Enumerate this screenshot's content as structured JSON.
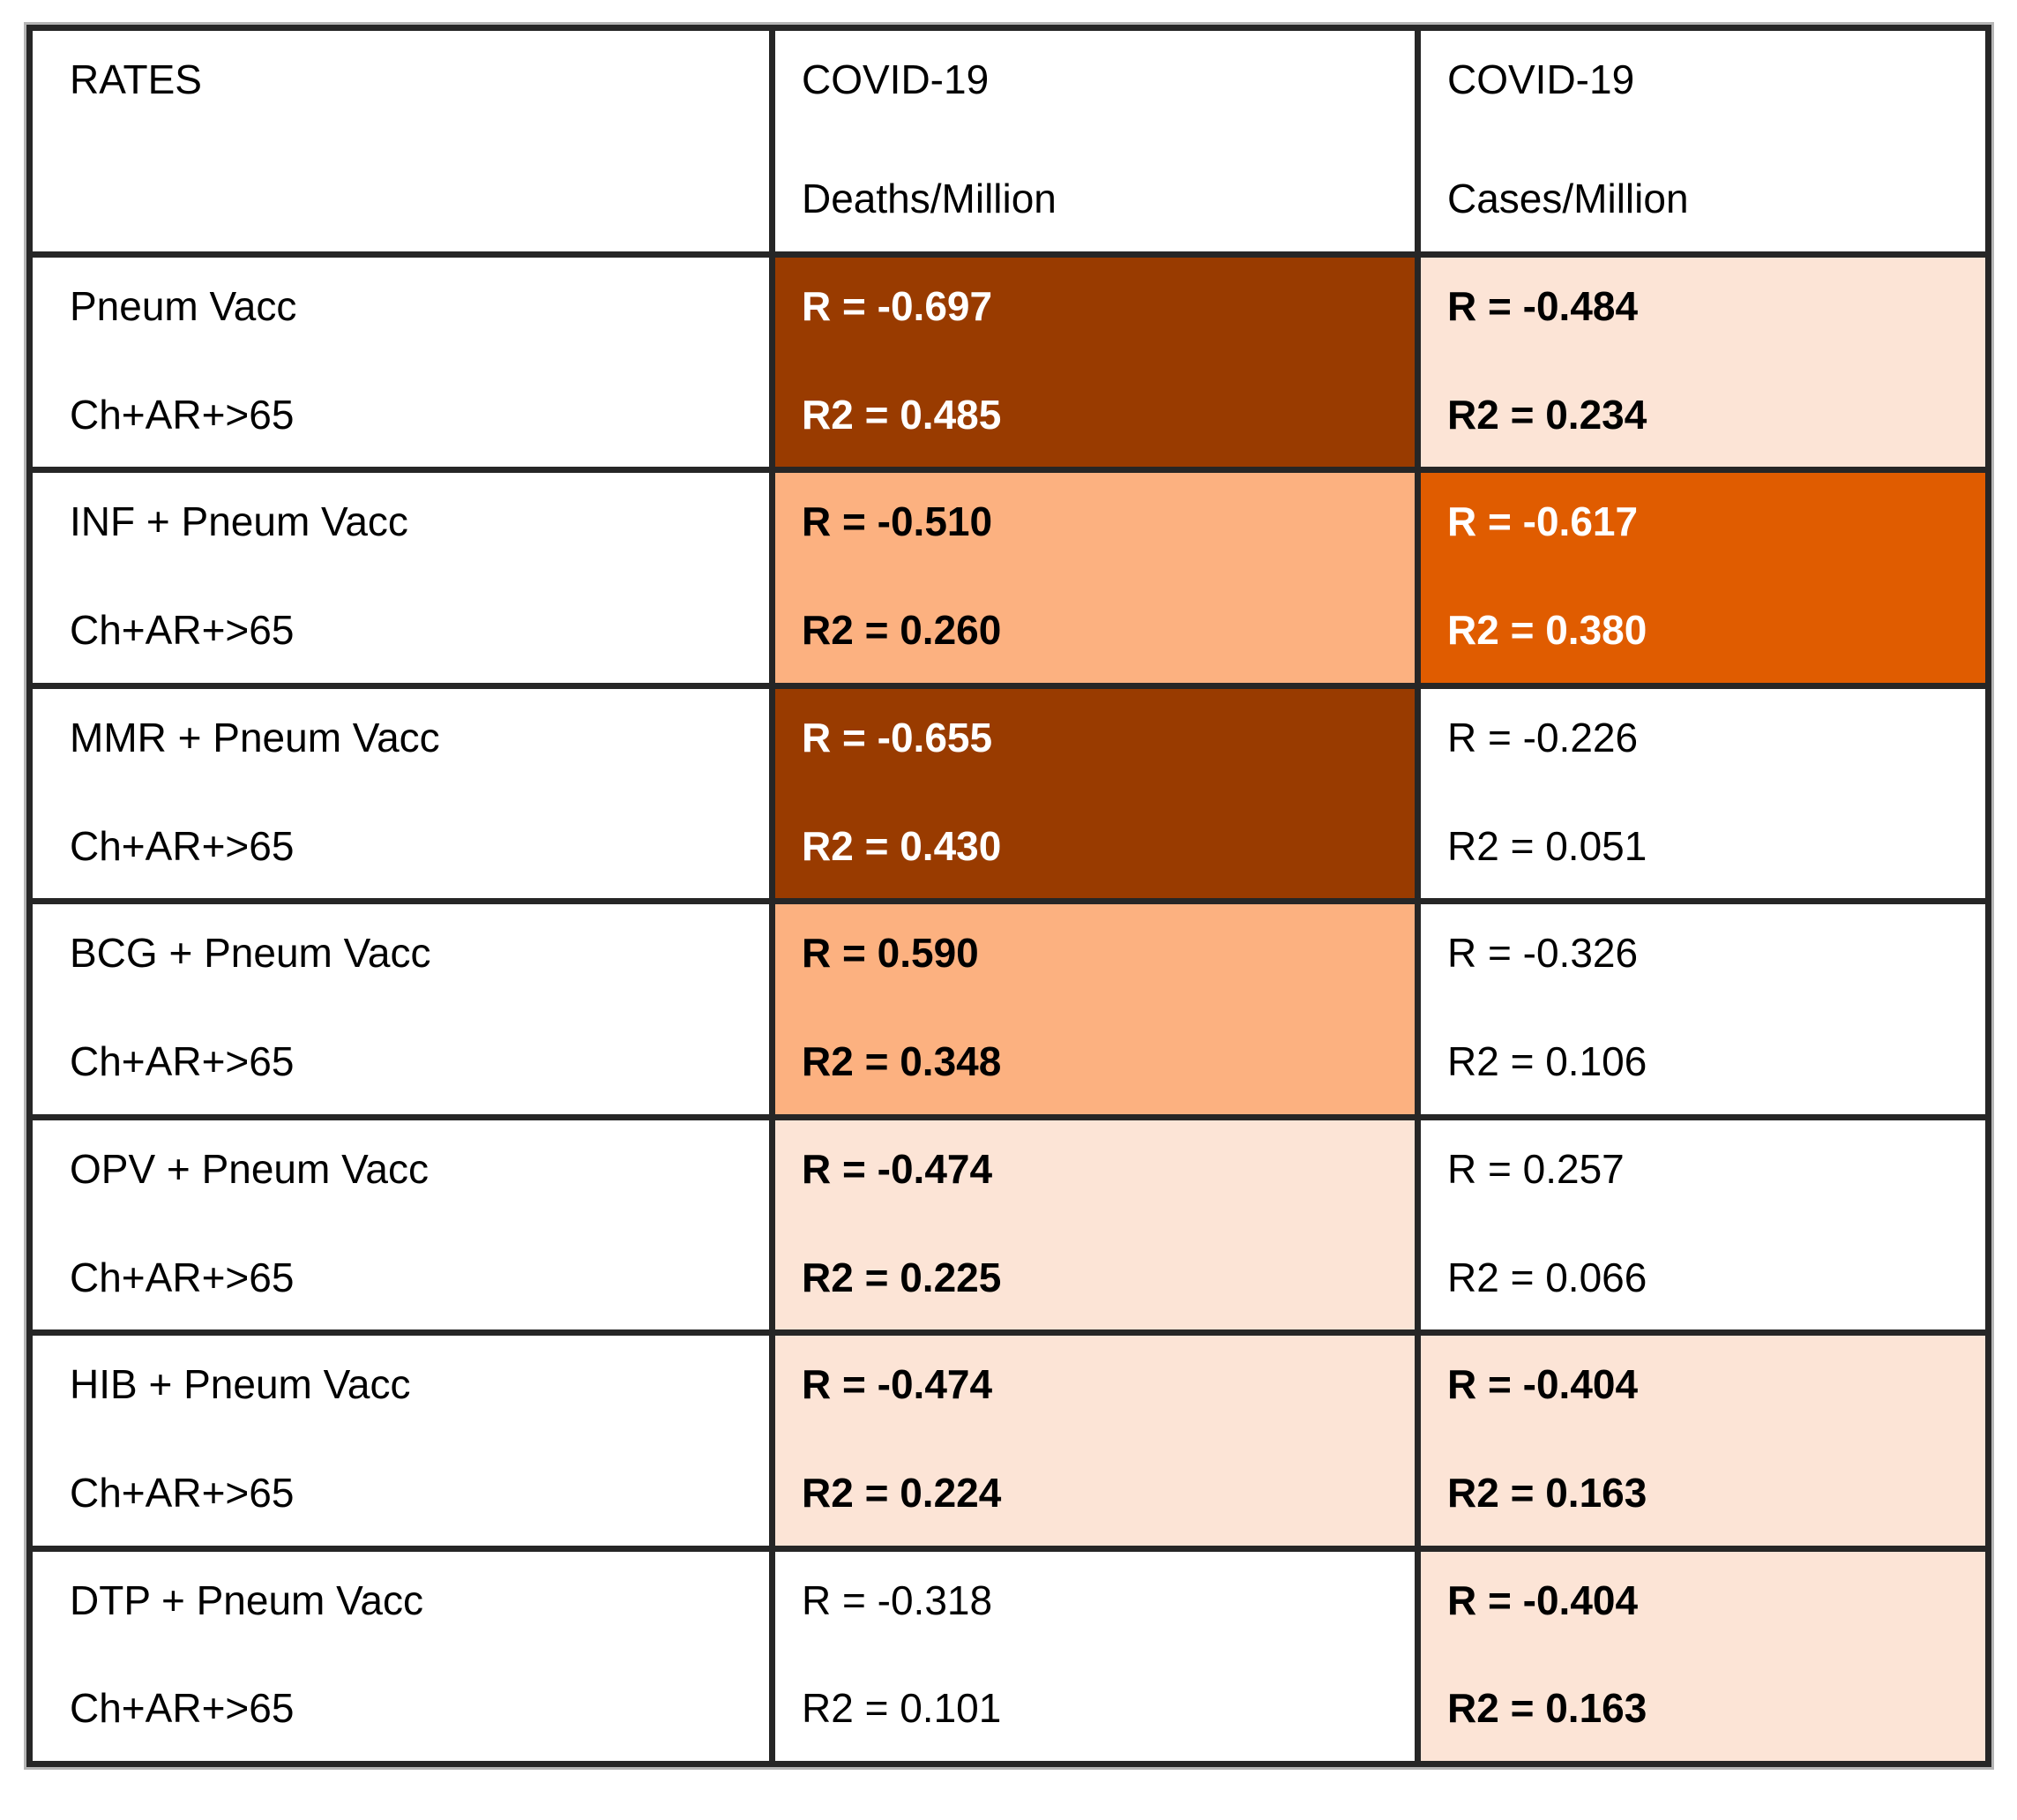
{
  "table": {
    "header": {
      "rates": "RATES",
      "deaths_line1": "COVID-19",
      "deaths_line2": "Deaths/Million",
      "cases_line1": "COVID-19",
      "cases_line2": "Cases/Million"
    },
    "rows": [
      {
        "label1": "Pneum Vacc",
        "label2": "Ch+AR+>65",
        "deaths": {
          "r": "R = -0.697",
          "r2": "R2 = 0.485",
          "style": "dark"
        },
        "cases": {
          "r": "R = -0.484",
          "r2": "R2 = 0.234",
          "style": "light"
        }
      },
      {
        "label1": "INF + Pneum Vacc",
        "label2": "Ch+AR+>65",
        "deaths": {
          "r": "R = -0.510",
          "r2": "R2 = 0.260",
          "style": "medium"
        },
        "cases": {
          "r": "R = -0.617",
          "r2": "R2 = 0.380",
          "style": "strong"
        }
      },
      {
        "label1": "MMR + Pneum Vacc",
        "label2": "Ch+AR+>65",
        "deaths": {
          "r": "R = -0.655",
          "r2": "R2 = 0.430",
          "style": "dark"
        },
        "cases": {
          "r": "R = -0.226",
          "r2": "R2 = 0.051",
          "style": "white"
        }
      },
      {
        "label1": "BCG + Pneum Vacc",
        "label2": "Ch+AR+>65",
        "deaths": {
          "r": "R = 0.590",
          "r2": "R2 = 0.348",
          "style": "medium"
        },
        "cases": {
          "r": "R = -0.326",
          "r2": "R2 = 0.106",
          "style": "white"
        }
      },
      {
        "label1": "OPV + Pneum Vacc",
        "label2": "Ch+AR+>65",
        "deaths": {
          "r": "R = -0.474",
          "r2": "R2 = 0.225",
          "style": "light"
        },
        "cases": {
          "r": "R = 0.257",
          "r2": "R2 = 0.066",
          "style": "white"
        }
      },
      {
        "label1": "HIB + Pneum Vacc",
        "label2": "Ch+AR+>65",
        "deaths": {
          "r": "R = -0.474",
          "r2": "R2 = 0.224",
          "style": "light"
        },
        "cases": {
          "r": "R = -0.404",
          "r2": "R2 = 0.163",
          "style": "light"
        }
      },
      {
        "label1": "DTP + Pneum Vacc",
        "label2": "Ch+AR+>65",
        "deaths": {
          "r": "R = -0.318",
          "r2": "R2 = 0.101",
          "style": "white"
        },
        "cases": {
          "r": "R = -0.404",
          "r2": "R2 = 0.163",
          "style": "light"
        }
      }
    ]
  },
  "colors": {
    "dark": "#993B00",
    "strong": "#E05C00",
    "medium": "#FCB180",
    "light": "#FCE4D6",
    "white": "#FFFFFF",
    "border": "#262626",
    "text_on_dark_cells": "#FFFFFF",
    "text_on_light_cells": "#000000"
  },
  "chart_data": {
    "type": "table",
    "title": "Correlation of vaccination rates with COVID-19 deaths and cases per million",
    "columns": [
      "RATES",
      "COVID-19 Deaths/Million",
      "COVID-19 Cases/Million"
    ],
    "rows": [
      {
        "rates": "Pneum Vacc Ch+AR+>65",
        "deaths_R": -0.697,
        "deaths_R2": 0.485,
        "cases_R": -0.484,
        "cases_R2": 0.234,
        "deaths_highlight": "dark",
        "cases_highlight": "light"
      },
      {
        "rates": "INF + Pneum Vacc Ch+AR+>65",
        "deaths_R": -0.51,
        "deaths_R2": 0.26,
        "cases_R": -0.617,
        "cases_R2": 0.38,
        "deaths_highlight": "medium",
        "cases_highlight": "strong"
      },
      {
        "rates": "MMR + Pneum Vacc Ch+AR+>65",
        "deaths_R": -0.655,
        "deaths_R2": 0.43,
        "cases_R": -0.226,
        "cases_R2": 0.051,
        "deaths_highlight": "dark",
        "cases_highlight": "none"
      },
      {
        "rates": "BCG + Pneum Vacc Ch+AR+>65",
        "deaths_R": 0.59,
        "deaths_R2": 0.348,
        "cases_R": -0.326,
        "cases_R2": 0.106,
        "deaths_highlight": "medium",
        "cases_highlight": "none"
      },
      {
        "rates": "OPV + Pneum Vacc Ch+AR+>65",
        "deaths_R": -0.474,
        "deaths_R2": 0.225,
        "cases_R": 0.257,
        "cases_R2": 0.066,
        "deaths_highlight": "light",
        "cases_highlight": "none"
      },
      {
        "rates": "HIB + Pneum Vacc Ch+AR+>65",
        "deaths_R": -0.474,
        "deaths_R2": 0.224,
        "cases_R": -0.404,
        "cases_R2": 0.163,
        "deaths_highlight": "light",
        "cases_highlight": "light"
      },
      {
        "rates": "DTP + Pneum Vacc Ch+AR+>65",
        "deaths_R": -0.318,
        "deaths_R2": 0.101,
        "cases_R": -0.404,
        "cases_R2": 0.163,
        "deaths_highlight": "none",
        "cases_highlight": "light"
      }
    ],
    "legend_position": "none",
    "grid": true
  }
}
